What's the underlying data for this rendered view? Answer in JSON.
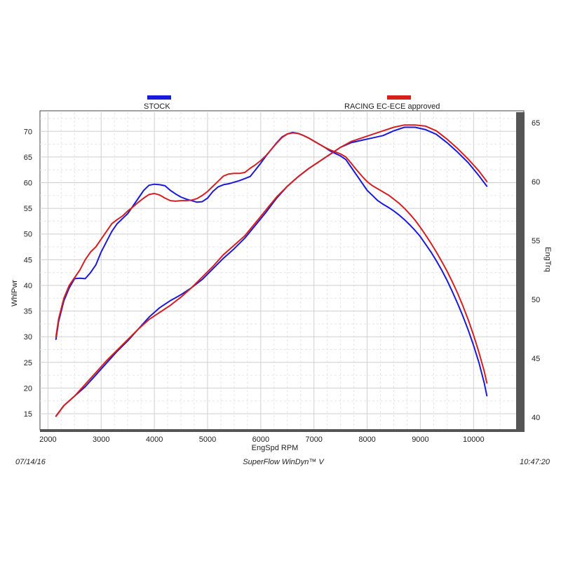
{
  "chart_data": {
    "type": "line",
    "xlabel": "EngSpd  RPM",
    "ylabel_left": "WhlPwr",
    "ylabel_right": "EngTrq",
    "xlim": [
      1850,
      10800
    ],
    "ylim_left": [
      12,
      74
    ],
    "ylim_right": [
      39,
      66
    ],
    "x_ticks": [
      2000,
      3000,
      4000,
      5000,
      6000,
      7000,
      8000,
      9000,
      10000
    ],
    "y_left_ticks": [
      15,
      20,
      25,
      30,
      35,
      40,
      45,
      50,
      55,
      60,
      65,
      70
    ],
    "y_right_ticks": [
      40,
      45,
      50,
      55,
      60,
      65
    ],
    "grid": true,
    "legend": [
      {
        "name": "STOCK",
        "color": "#1a1adb"
      },
      {
        "name": "RACING EC-ECE approved",
        "color": "#d42020"
      }
    ],
    "series": [
      {
        "name": "STOCK",
        "measure": "WhlPwr",
        "axis": "left",
        "color": "#1a1adb",
        "points": [
          [
            2150,
            29.5
          ],
          [
            2200,
            33
          ],
          [
            2300,
            37
          ],
          [
            2400,
            39.5
          ],
          [
            2500,
            41.3
          ],
          [
            2600,
            41.4
          ],
          [
            2700,
            41.3
          ],
          [
            2800,
            42.5
          ],
          [
            2900,
            44
          ],
          [
            3000,
            46.5
          ],
          [
            3100,
            48.5
          ],
          [
            3200,
            50.5
          ],
          [
            3300,
            52
          ],
          [
            3400,
            53
          ],
          [
            3500,
            54
          ],
          [
            3600,
            55.5
          ],
          [
            3700,
            57
          ],
          [
            3800,
            58.5
          ],
          [
            3900,
            59.5
          ],
          [
            4000,
            59.7
          ],
          [
            4100,
            59.6
          ],
          [
            4200,
            59.4
          ],
          [
            4300,
            58.5
          ],
          [
            4400,
            57.8
          ],
          [
            4500,
            57.2
          ],
          [
            4600,
            56.8
          ],
          [
            4700,
            56.5
          ],
          [
            4800,
            56.2
          ],
          [
            4900,
            56.3
          ],
          [
            5000,
            57
          ],
          [
            5100,
            58.3
          ],
          [
            5200,
            59.2
          ],
          [
            5300,
            59.6
          ],
          [
            5400,
            59.8
          ],
          [
            5500,
            60.1
          ],
          [
            5600,
            60.4
          ],
          [
            5700,
            60.8
          ],
          [
            5800,
            61.2
          ],
          [
            5900,
            62.5
          ],
          [
            6000,
            63.8
          ],
          [
            6100,
            65.2
          ],
          [
            6200,
            66.5
          ],
          [
            6300,
            67.8
          ],
          [
            6400,
            68.9
          ],
          [
            6500,
            69.5
          ],
          [
            6600,
            69.8
          ],
          [
            6700,
            69.6
          ],
          [
            6800,
            69.2
          ],
          [
            6900,
            68.7
          ],
          [
            7000,
            68.1
          ],
          [
            7100,
            67.5
          ],
          [
            7200,
            66.9
          ],
          [
            7300,
            66.2
          ],
          [
            7400,
            65.7
          ],
          [
            7500,
            65.2
          ]
        ]
      },
      {
        "name": "RACING EC-ECE approved",
        "measure": "WhlPwr",
        "axis": "left",
        "color": "#d42020",
        "points": [
          [
            2150,
            30
          ],
          [
            2200,
            33.5
          ],
          [
            2300,
            37.5
          ],
          [
            2400,
            40
          ],
          [
            2500,
            41.5
          ],
          [
            2600,
            43
          ],
          [
            2700,
            45
          ],
          [
            2800,
            46.5
          ],
          [
            2900,
            47.5
          ],
          [
            3000,
            49
          ],
          [
            3100,
            50.5
          ],
          [
            3200,
            52
          ],
          [
            3300,
            52.8
          ],
          [
            3400,
            53.5
          ],
          [
            3500,
            54.5
          ],
          [
            3600,
            55.3
          ],
          [
            3700,
            56.2
          ],
          [
            3800,
            57
          ],
          [
            3900,
            57.7
          ],
          [
            4000,
            57.9
          ],
          [
            4100,
            57.6
          ],
          [
            4200,
            57
          ],
          [
            4300,
            56.5
          ],
          [
            4400,
            56.4
          ],
          [
            4500,
            56.5
          ],
          [
            4600,
            56.5
          ],
          [
            4700,
            56.6
          ],
          [
            4800,
            56.9
          ],
          [
            4900,
            57.5
          ],
          [
            5000,
            58.3
          ],
          [
            5100,
            59.3
          ],
          [
            5200,
            60.3
          ],
          [
            5300,
            61.3
          ],
          [
            5400,
            61.7
          ],
          [
            5500,
            61.8
          ],
          [
            5600,
            61.8
          ],
          [
            5700,
            62
          ],
          [
            5800,
            62.8
          ],
          [
            5900,
            63.5
          ],
          [
            6000,
            64.3
          ],
          [
            6100,
            65.3
          ],
          [
            6200,
            66.5
          ],
          [
            6300,
            67.7
          ],
          [
            6400,
            68.8
          ],
          [
            6500,
            69.5
          ],
          [
            6600,
            69.7
          ],
          [
            6700,
            69.6
          ],
          [
            6800,
            69.2
          ],
          [
            6900,
            68.7
          ],
          [
            7000,
            68.1
          ],
          [
            7100,
            67.5
          ],
          [
            7200,
            66.9
          ],
          [
            7300,
            66.4
          ],
          [
            7400,
            66
          ],
          [
            7500,
            65.6
          ]
        ]
      },
      {
        "name": "STOCK",
        "measure": "EngTrq",
        "axis": "right",
        "color": "#1a1adb",
        "points": [
          [
            2150,
            40.1
          ],
          [
            2300,
            41
          ],
          [
            2500,
            41.8
          ],
          [
            2700,
            42.6
          ],
          [
            2900,
            43.6
          ],
          [
            3100,
            44.6
          ],
          [
            3300,
            45.6
          ],
          [
            3500,
            46.5
          ],
          [
            3700,
            47.5
          ],
          [
            3900,
            48.5
          ],
          [
            4100,
            49.3
          ],
          [
            4300,
            49.9
          ],
          [
            4500,
            50.4
          ],
          [
            4700,
            51
          ],
          [
            4900,
            51.7
          ],
          [
            5100,
            52.6
          ],
          [
            5300,
            53.5
          ],
          [
            5500,
            54.3
          ],
          [
            5700,
            55.2
          ],
          [
            5900,
            56.3
          ],
          [
            6100,
            57.4
          ],
          [
            6300,
            58.6
          ],
          [
            6500,
            59.6
          ],
          [
            6700,
            60.4
          ],
          [
            6900,
            61.1
          ],
          [
            7100,
            61.7
          ],
          [
            7300,
            62.3
          ],
          [
            7500,
            62.9
          ],
          [
            7700,
            63.3
          ],
          [
            7900,
            63.5
          ],
          [
            8100,
            63.7
          ],
          [
            8300,
            63.9
          ],
          [
            8500,
            64.3
          ],
          [
            8700,
            64.6
          ],
          [
            8900,
            64.6
          ],
          [
            9100,
            64.4
          ],
          [
            9300,
            64
          ],
          [
            9500,
            63.3
          ],
          [
            9700,
            62.5
          ],
          [
            9900,
            61.6
          ],
          [
            10100,
            60.5
          ],
          [
            10250,
            59.6
          ]
        ]
      },
      {
        "name": "RACING EC-ECE approved",
        "measure": "EngTrq",
        "axis": "right",
        "color": "#d42020",
        "points": [
          [
            2150,
            40.1
          ],
          [
            2300,
            41
          ],
          [
            2500,
            41.8
          ],
          [
            2700,
            42.8
          ],
          [
            2900,
            43.8
          ],
          [
            3100,
            44.8
          ],
          [
            3300,
            45.7
          ],
          [
            3500,
            46.6
          ],
          [
            3700,
            47.5
          ],
          [
            3900,
            48.3
          ],
          [
            4100,
            48.9
          ],
          [
            4300,
            49.5
          ],
          [
            4500,
            50.2
          ],
          [
            4700,
            51
          ],
          [
            4900,
            51.9
          ],
          [
            5100,
            52.8
          ],
          [
            5300,
            53.8
          ],
          [
            5500,
            54.6
          ],
          [
            5700,
            55.4
          ],
          [
            5900,
            56.5
          ],
          [
            6100,
            57.6
          ],
          [
            6300,
            58.7
          ],
          [
            6500,
            59.6
          ],
          [
            6700,
            60.4
          ],
          [
            6900,
            61.1
          ],
          [
            7100,
            61.7
          ],
          [
            7300,
            62.3
          ],
          [
            7500,
            62.9
          ],
          [
            7700,
            63.4
          ],
          [
            7900,
            63.7
          ],
          [
            8100,
            64
          ],
          [
            8300,
            64.3
          ],
          [
            8500,
            64.6
          ],
          [
            8700,
            64.8
          ],
          [
            8900,
            64.8
          ],
          [
            9100,
            64.7
          ],
          [
            9300,
            64.3
          ],
          [
            9500,
            63.6
          ],
          [
            9700,
            62.8
          ],
          [
            9900,
            61.9
          ],
          [
            10100,
            60.9
          ],
          [
            10250,
            60
          ]
        ]
      },
      {
        "name": "STOCK",
        "measure": "WhlPwr",
        "axis": "left",
        "color": "#1a1adb",
        "points": [
          [
            7500,
            65.2
          ],
          [
            7600,
            64.5
          ],
          [
            7700,
            63
          ],
          [
            7800,
            61.5
          ],
          [
            7900,
            60
          ],
          [
            8000,
            58.5
          ],
          [
            8100,
            57.5
          ],
          [
            8200,
            56.5
          ],
          [
            8300,
            55.8
          ],
          [
            8400,
            55.2
          ],
          [
            8500,
            54.5
          ],
          [
            8600,
            53.7
          ],
          [
            8700,
            52.8
          ],
          [
            8800,
            51.8
          ],
          [
            8900,
            50.7
          ],
          [
            9000,
            49.5
          ],
          [
            9100,
            48
          ],
          [
            9200,
            46.5
          ],
          [
            9300,
            44.8
          ],
          [
            9400,
            43
          ],
          [
            9500,
            41
          ],
          [
            9600,
            38.8
          ],
          [
            9700,
            36.5
          ],
          [
            9800,
            34
          ],
          [
            9900,
            31.3
          ],
          [
            10000,
            28.3
          ],
          [
            10100,
            25
          ],
          [
            10200,
            21
          ],
          [
            10250,
            18.5
          ]
        ]
      },
      {
        "name": "RACING EC-ECE approved",
        "measure": "WhlPwr",
        "axis": "left",
        "color": "#d42020",
        "points": [
          [
            7500,
            65.6
          ],
          [
            7600,
            65
          ],
          [
            7700,
            63.8
          ],
          [
            7800,
            62.5
          ],
          [
            7900,
            61.3
          ],
          [
            8000,
            60.2
          ],
          [
            8100,
            59.4
          ],
          [
            8200,
            58.8
          ],
          [
            8300,
            58.2
          ],
          [
            8400,
            57.6
          ],
          [
            8500,
            56.8
          ],
          [
            8600,
            56
          ],
          [
            8700,
            55
          ],
          [
            8800,
            53.9
          ],
          [
            8900,
            52.7
          ],
          [
            9000,
            51.3
          ],
          [
            9100,
            49.8
          ],
          [
            9200,
            48.2
          ],
          [
            9300,
            46.5
          ],
          [
            9400,
            44.7
          ],
          [
            9500,
            42.8
          ],
          [
            9600,
            40.7
          ],
          [
            9700,
            38.5
          ],
          [
            9800,
            36
          ],
          [
            9900,
            33.3
          ],
          [
            10000,
            30.3
          ],
          [
            10100,
            27
          ],
          [
            10200,
            23.3
          ],
          [
            10250,
            21
          ]
        ]
      }
    ]
  },
  "legend": {
    "stock_label": "STOCK",
    "racing_label": "RACING EC-ECE approved"
  },
  "axes": {
    "xlabel": "EngSpd  RPM",
    "ylabel_left": "WhlPwr",
    "ylabel_right": "EngTrq"
  },
  "footer": {
    "date": "07/14/16",
    "software": "SuperFlow WinDyn™ V",
    "time": "10:47:20"
  }
}
